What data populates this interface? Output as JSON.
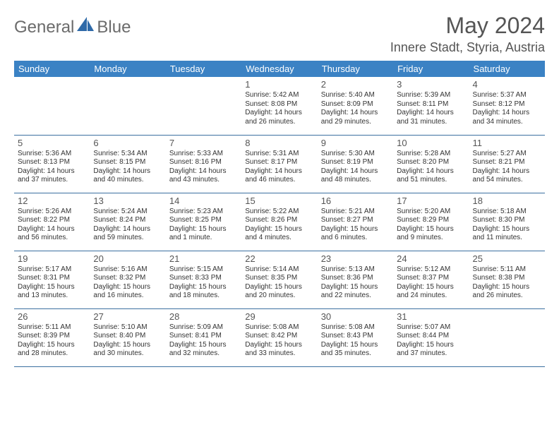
{
  "brand": {
    "part1": "General",
    "part2": "Blue"
  },
  "title": "May 2024",
  "location": "Innere Stadt, Styria, Austria",
  "colors": {
    "header_bg": "#3b82c4",
    "header_text": "#ffffff",
    "border": "#3b6fa0",
    "text": "#333333",
    "title_text": "#555555",
    "logo_gray": "#6b6b6b",
    "logo_blue": "#2f6aa8"
  },
  "weekdays": [
    "Sunday",
    "Monday",
    "Tuesday",
    "Wednesday",
    "Thursday",
    "Friday",
    "Saturday"
  ],
  "weeks": [
    [
      null,
      null,
      null,
      {
        "n": "1",
        "sr": "5:42 AM",
        "ss": "8:08 PM",
        "dl": "14 hours and 26 minutes."
      },
      {
        "n": "2",
        "sr": "5:40 AM",
        "ss": "8:09 PM",
        "dl": "14 hours and 29 minutes."
      },
      {
        "n": "3",
        "sr": "5:39 AM",
        "ss": "8:11 PM",
        "dl": "14 hours and 31 minutes."
      },
      {
        "n": "4",
        "sr": "5:37 AM",
        "ss": "8:12 PM",
        "dl": "14 hours and 34 minutes."
      }
    ],
    [
      {
        "n": "5",
        "sr": "5:36 AM",
        "ss": "8:13 PM",
        "dl": "14 hours and 37 minutes."
      },
      {
        "n": "6",
        "sr": "5:34 AM",
        "ss": "8:15 PM",
        "dl": "14 hours and 40 minutes."
      },
      {
        "n": "7",
        "sr": "5:33 AM",
        "ss": "8:16 PM",
        "dl": "14 hours and 43 minutes."
      },
      {
        "n": "8",
        "sr": "5:31 AM",
        "ss": "8:17 PM",
        "dl": "14 hours and 46 minutes."
      },
      {
        "n": "9",
        "sr": "5:30 AM",
        "ss": "8:19 PM",
        "dl": "14 hours and 48 minutes."
      },
      {
        "n": "10",
        "sr": "5:28 AM",
        "ss": "8:20 PM",
        "dl": "14 hours and 51 minutes."
      },
      {
        "n": "11",
        "sr": "5:27 AM",
        "ss": "8:21 PM",
        "dl": "14 hours and 54 minutes."
      }
    ],
    [
      {
        "n": "12",
        "sr": "5:26 AM",
        "ss": "8:22 PM",
        "dl": "14 hours and 56 minutes."
      },
      {
        "n": "13",
        "sr": "5:24 AM",
        "ss": "8:24 PM",
        "dl": "14 hours and 59 minutes."
      },
      {
        "n": "14",
        "sr": "5:23 AM",
        "ss": "8:25 PM",
        "dl": "15 hours and 1 minute."
      },
      {
        "n": "15",
        "sr": "5:22 AM",
        "ss": "8:26 PM",
        "dl": "15 hours and 4 minutes."
      },
      {
        "n": "16",
        "sr": "5:21 AM",
        "ss": "8:27 PM",
        "dl": "15 hours and 6 minutes."
      },
      {
        "n": "17",
        "sr": "5:20 AM",
        "ss": "8:29 PM",
        "dl": "15 hours and 9 minutes."
      },
      {
        "n": "18",
        "sr": "5:18 AM",
        "ss": "8:30 PM",
        "dl": "15 hours and 11 minutes."
      }
    ],
    [
      {
        "n": "19",
        "sr": "5:17 AM",
        "ss": "8:31 PM",
        "dl": "15 hours and 13 minutes."
      },
      {
        "n": "20",
        "sr": "5:16 AM",
        "ss": "8:32 PM",
        "dl": "15 hours and 16 minutes."
      },
      {
        "n": "21",
        "sr": "5:15 AM",
        "ss": "8:33 PM",
        "dl": "15 hours and 18 minutes."
      },
      {
        "n": "22",
        "sr": "5:14 AM",
        "ss": "8:35 PM",
        "dl": "15 hours and 20 minutes."
      },
      {
        "n": "23",
        "sr": "5:13 AM",
        "ss": "8:36 PM",
        "dl": "15 hours and 22 minutes."
      },
      {
        "n": "24",
        "sr": "5:12 AM",
        "ss": "8:37 PM",
        "dl": "15 hours and 24 minutes."
      },
      {
        "n": "25",
        "sr": "5:11 AM",
        "ss": "8:38 PM",
        "dl": "15 hours and 26 minutes."
      }
    ],
    [
      {
        "n": "26",
        "sr": "5:11 AM",
        "ss": "8:39 PM",
        "dl": "15 hours and 28 minutes."
      },
      {
        "n": "27",
        "sr": "5:10 AM",
        "ss": "8:40 PM",
        "dl": "15 hours and 30 minutes."
      },
      {
        "n": "28",
        "sr": "5:09 AM",
        "ss": "8:41 PM",
        "dl": "15 hours and 32 minutes."
      },
      {
        "n": "29",
        "sr": "5:08 AM",
        "ss": "8:42 PM",
        "dl": "15 hours and 33 minutes."
      },
      {
        "n": "30",
        "sr": "5:08 AM",
        "ss": "8:43 PM",
        "dl": "15 hours and 35 minutes."
      },
      {
        "n": "31",
        "sr": "5:07 AM",
        "ss": "8:44 PM",
        "dl": "15 hours and 37 minutes."
      },
      null
    ]
  ],
  "labels": {
    "sunrise": "Sunrise:",
    "sunset": "Sunset:",
    "daylight": "Daylight:"
  }
}
